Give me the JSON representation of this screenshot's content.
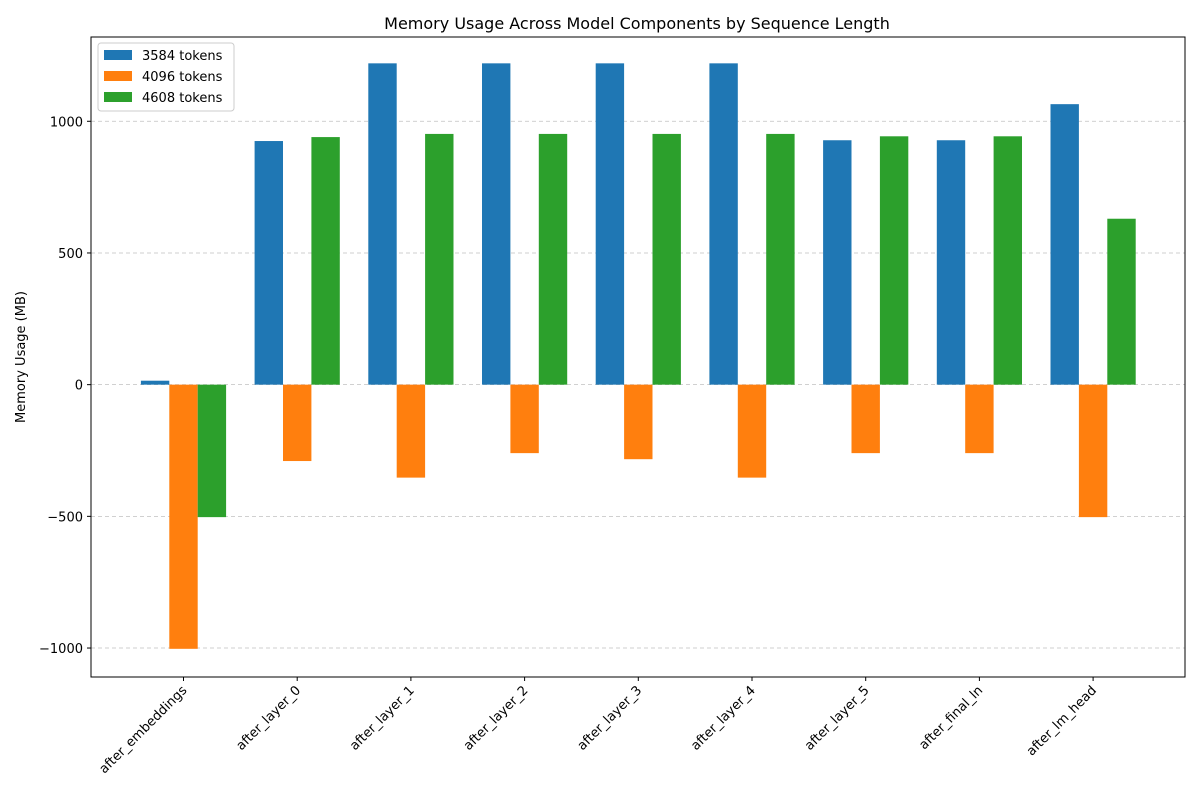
{
  "chart_data": {
    "type": "bar",
    "title": "Memory Usage Across Model Components by Sequence Length",
    "xlabel": "",
    "ylabel": "Memory Usage (MB)",
    "ylim": [
      -1110,
      1320
    ],
    "yticks": [
      -1000,
      -500,
      0,
      500,
      1000
    ],
    "ytick_labels": [
      "−1000",
      "−500",
      "0",
      "500",
      "1000"
    ],
    "grid": "y dashed",
    "legend_position": "top-left",
    "categories": [
      "after_embeddings",
      "after_layer_0",
      "after_layer_1",
      "after_layer_2",
      "after_layer_3",
      "after_layer_4",
      "after_layer_5",
      "after_final_ln",
      "after_lm_head"
    ],
    "series": [
      {
        "name": "3584 tokens",
        "color": "#1f77b4",
        "values": [
          15,
          925,
          1220,
          1220,
          1220,
          1220,
          928,
          928,
          1065
        ]
      },
      {
        "name": "4096 tokens",
        "color": "#ff7f0e",
        "values": [
          -1003,
          -290,
          -353,
          -260,
          -283,
          -353,
          -260,
          -260,
          -503
        ]
      },
      {
        "name": "4608 tokens",
        "color": "#2ca02c",
        "values": [
          -503,
          940,
          952,
          952,
          952,
          952,
          943,
          943,
          630
        ]
      }
    ]
  }
}
